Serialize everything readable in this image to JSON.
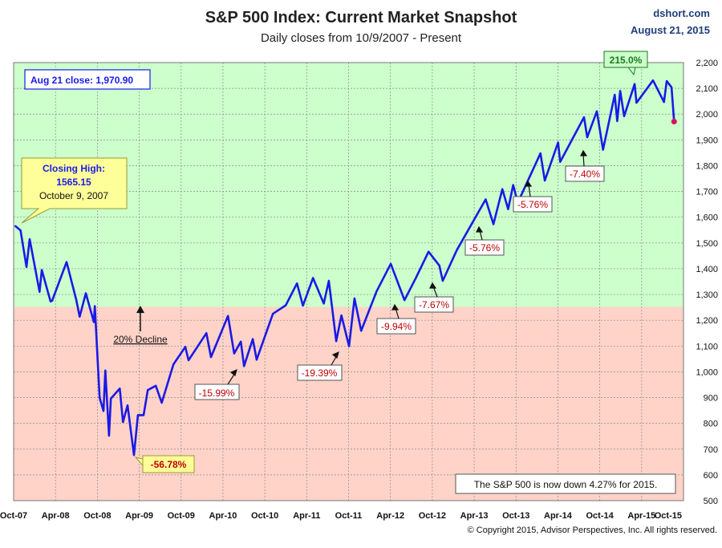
{
  "header": {
    "title": "S&P 500 Index: Current Market Snapshot",
    "subtitle": "Daily closes from 10/9/2007 - Present",
    "brand": "dshort.com",
    "date": "August 21, 2015"
  },
  "footer": {
    "copyright": "© Copyright 2015, Advisor Perspectives, Inc. All rights reserved."
  },
  "colors": {
    "line": "#1a1ae6",
    "bull_zone": "#ccffcc",
    "bear_zone": "#ffd3c8",
    "decline_text": "#c00000",
    "peak_text": "#1a7a1a",
    "callout_fill": "#ffff99",
    "end_marker": "#d4145a"
  },
  "chart_data": {
    "type": "line",
    "xlabel": "",
    "ylabel": "",
    "ylim": [
      500,
      2200
    ],
    "y_ticks": [
      "500",
      "600",
      "700",
      "800",
      "900",
      "1,000",
      "1,100",
      "1,200",
      "1,300",
      "1,400",
      "1,500",
      "1,600",
      "1,700",
      "1,800",
      "1,900",
      "2,000",
      "2,100",
      "2,200"
    ],
    "x_ticks": [
      "Oct-07",
      "Apr-08",
      "Oct-08",
      "Apr-09",
      "Oct-09",
      "Apr-10",
      "Oct-10",
      "Apr-11",
      "Oct-11",
      "Apr-12",
      "Oct-12",
      "Apr-13",
      "Oct-13",
      "Apr-14",
      "Oct-14",
      "Apr-15",
      "Oct-15"
    ],
    "xlim": [
      "2007-10-01",
      "2015-10-01"
    ],
    "bear_threshold": 1252,
    "grid": true,
    "series": [
      {
        "points": [
          [
            "2007-10-09",
            1565
          ],
          [
            "2007-10-31",
            1549
          ],
          [
            "2007-11-26",
            1407
          ],
          [
            "2007-12-10",
            1515
          ],
          [
            "2008-01-22",
            1310
          ],
          [
            "2008-02-01",
            1395
          ],
          [
            "2008-03-10",
            1273
          ],
          [
            "2008-03-17",
            1276
          ],
          [
            "2008-05-19",
            1426
          ],
          [
            "2008-06-30",
            1280
          ],
          [
            "2008-07-15",
            1214
          ],
          [
            "2008-08-11",
            1305
          ],
          [
            "2008-09-15",
            1193
          ],
          [
            "2008-09-19",
            1255
          ],
          [
            "2008-10-10",
            899
          ],
          [
            "2008-10-27",
            848
          ],
          [
            "2008-11-04",
            1005
          ],
          [
            "2008-11-20",
            752
          ],
          [
            "2008-11-28",
            896
          ],
          [
            "2009-01-06",
            935
          ],
          [
            "2009-01-20",
            805
          ],
          [
            "2009-02-09",
            870
          ],
          [
            "2009-03-09",
            677
          ],
          [
            "2009-03-26",
            832
          ],
          [
            "2009-04-20",
            832
          ],
          [
            "2009-05-08",
            929
          ],
          [
            "2009-06-12",
            946
          ],
          [
            "2009-07-08",
            880
          ],
          [
            "2009-08-28",
            1029
          ],
          [
            "2009-10-19",
            1097
          ],
          [
            "2009-11-02",
            1045
          ],
          [
            "2010-01-19",
            1150
          ],
          [
            "2010-02-08",
            1057
          ],
          [
            "2010-04-23",
            1217
          ],
          [
            "2010-05-20",
            1071
          ],
          [
            "2010-06-18",
            1117
          ],
          [
            "2010-07-02",
            1022
          ],
          [
            "2010-08-09",
            1127
          ],
          [
            "2010-08-26",
            1047
          ],
          [
            "2010-11-05",
            1225
          ],
          [
            "2010-12-31",
            1258
          ],
          [
            "2011-02-18",
            1343
          ],
          [
            "2011-03-16",
            1257
          ],
          [
            "2011-04-29",
            1364
          ],
          [
            "2011-06-15",
            1265
          ],
          [
            "2011-07-07",
            1353
          ],
          [
            "2011-08-08",
            1119
          ],
          [
            "2011-08-31",
            1219
          ],
          [
            "2011-10-03",
            1099
          ],
          [
            "2011-10-27",
            1285
          ],
          [
            "2011-11-25",
            1159
          ],
          [
            "2012-01-31",
            1312
          ],
          [
            "2012-04-02",
            1419
          ],
          [
            "2012-06-01",
            1278
          ],
          [
            "2012-07-20",
            1363
          ],
          [
            "2012-09-14",
            1466
          ],
          [
            "2012-10-31",
            1412
          ],
          [
            "2012-11-15",
            1353
          ],
          [
            "2013-01-15",
            1472
          ],
          [
            "2013-05-21",
            1669
          ],
          [
            "2013-06-24",
            1573
          ],
          [
            "2013-08-02",
            1709
          ],
          [
            "2013-08-27",
            1631
          ],
          [
            "2013-09-18",
            1725
          ],
          [
            "2013-10-08",
            1656
          ],
          [
            "2014-01-15",
            1848
          ],
          [
            "2014-02-03",
            1742
          ],
          [
            "2014-04-02",
            1890
          ],
          [
            "2014-04-11",
            1815
          ],
          [
            "2014-07-24",
            1988
          ],
          [
            "2014-08-07",
            1910
          ],
          [
            "2014-09-18",
            2011
          ],
          [
            "2014-10-15",
            1862
          ],
          [
            "2014-12-05",
            2075
          ],
          [
            "2014-12-16",
            1973
          ],
          [
            "2014-12-29",
            2090
          ],
          [
            "2015-01-15",
            1992
          ],
          [
            "2015-03-02",
            2117
          ],
          [
            "2015-03-10",
            2044
          ],
          [
            "2015-05-21",
            2131
          ],
          [
            "2015-07-08",
            2047
          ],
          [
            "2015-07-20",
            2128
          ],
          [
            "2015-08-10",
            2104
          ],
          [
            "2015-08-21",
            1971
          ]
        ]
      }
    ],
    "annotations": {
      "last_close_label": "Aug 21 close: 1,970.90",
      "closing_high_l1": "Closing High:",
      "closing_high_l2": "1565.15",
      "closing_high_l3": "October 9, 2007",
      "decline_20_label": "20% Decline",
      "peak_gain": "215.0%",
      "bear_bottom": "-56.78%",
      "ytd_note": "The S&P 500  is now down 4.27% for 2015.",
      "declines": [
        {
          "label": "-15.99%",
          "date": "2010-07-02",
          "value": 1022
        },
        {
          "label": "-19.39%",
          "date": "2011-10-03",
          "value": 1099
        },
        {
          "label": "-9.94%",
          "date": "2012-06-01",
          "value": 1278
        },
        {
          "label": "-7.67%",
          "date": "2012-11-15",
          "value": 1353
        },
        {
          "label": "-5.76%",
          "date": "2013-06-24",
          "value": 1573
        },
        {
          "label": "-5.76%",
          "date": "2014-02-03",
          "value": 1742
        },
        {
          "label": "-7.40%",
          "date": "2014-10-15",
          "value": 1862
        }
      ]
    }
  }
}
